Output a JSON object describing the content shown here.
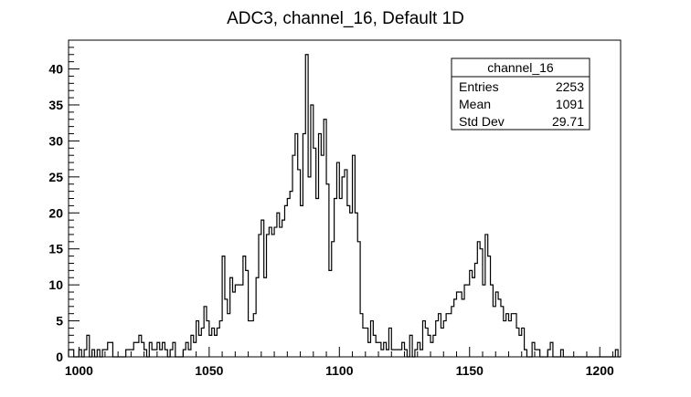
{
  "chart_data": {
    "type": "bar",
    "title": "ADC3, channel_16, Default 1D",
    "xlabel": "",
    "ylabel": "",
    "xlim": [
      996,
      1208
    ],
    "ylim": [
      0,
      44
    ],
    "bin_width": 1,
    "x_ticks": [
      1000,
      1050,
      1100,
      1150,
      1200
    ],
    "y_ticks": [
      0,
      5,
      10,
      15,
      20,
      25,
      30,
      35,
      40
    ],
    "grid": false,
    "legend": "none",
    "stats_box": {
      "position": "top-right",
      "title": "channel_16",
      "rows": [
        {
          "label": "Entries",
          "value": "2253"
        },
        {
          "label": "Mean",
          "value": "1091"
        },
        {
          "label": "Std Dev",
          "value": "29.71"
        }
      ]
    },
    "series": [
      {
        "x_start": 996,
        "values": [
          1,
          1,
          0,
          0,
          1,
          0,
          1,
          3,
          0,
          1,
          0,
          1,
          0,
          1,
          1,
          2,
          2,
          0,
          0,
          0,
          0,
          0,
          1,
          1,
          1,
          2,
          2,
          3,
          2,
          1,
          0,
          2,
          1,
          1,
          2,
          1,
          2,
          1,
          0,
          1,
          2,
          0,
          0,
          0,
          1,
          2,
          1,
          3,
          2,
          5,
          3,
          4,
          7,
          5,
          3,
          4,
          3,
          4,
          5,
          14,
          8,
          6,
          11,
          9,
          10,
          10,
          10,
          14,
          12,
          5,
          5,
          6,
          11,
          17,
          19,
          11,
          17,
          18,
          17,
          18,
          20,
          18,
          19,
          21,
          22,
          23,
          28,
          31,
          26,
          21,
          31,
          42,
          25,
          35,
          29,
          22,
          31,
          28,
          33,
          24,
          12,
          16,
          22,
          27,
          22,
          25,
          26,
          21,
          20,
          28,
          20,
          16,
          6,
          4,
          4,
          2,
          5,
          3,
          2,
          2,
          1,
          2,
          1,
          4,
          1,
          1,
          1,
          1,
          2,
          1,
          0,
          3,
          0,
          1,
          2,
          1,
          5,
          4,
          3,
          2,
          3,
          5,
          6,
          4,
          5,
          6,
          6,
          7,
          8,
          9,
          9,
          8,
          10,
          10,
          12,
          11,
          13,
          16,
          15,
          10,
          17,
          14,
          10,
          7,
          9,
          8,
          7,
          5,
          6,
          5,
          6,
          6,
          4,
          3,
          4,
          1,
          0,
          0,
          2,
          1,
          1,
          0,
          0,
          0,
          1,
          2,
          0,
          0,
          0,
          1,
          0,
          0,
          0,
          0,
          0,
          0,
          0,
          0,
          0,
          0,
          0,
          0,
          0,
          0,
          0,
          0,
          0,
          0,
          0,
          0,
          1,
          0
        ]
      }
    ]
  }
}
